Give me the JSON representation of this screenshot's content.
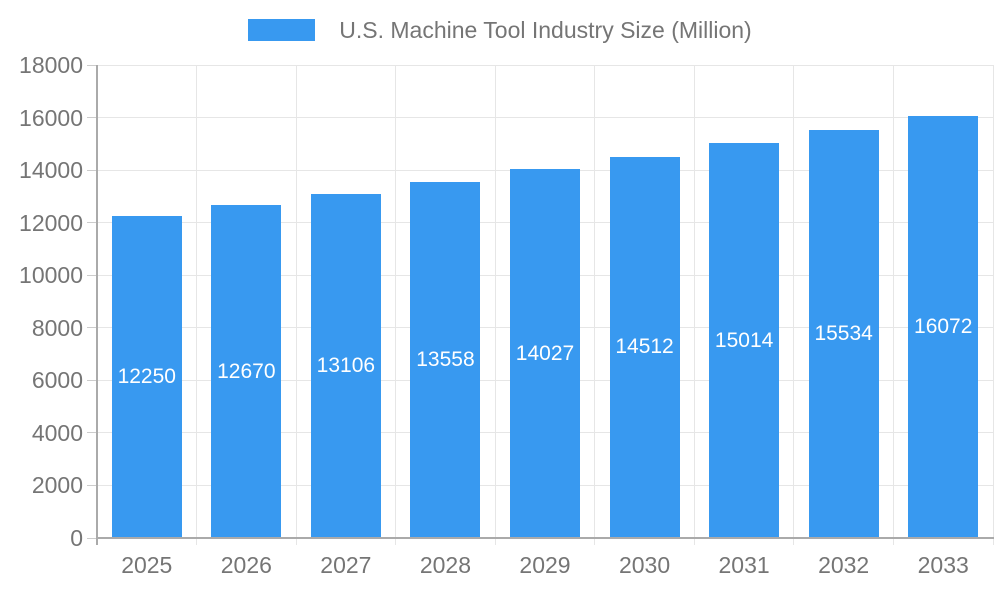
{
  "legend": {
    "series_label": "U.S. Machine Tool Industry Size (Million)"
  },
  "colors": {
    "bar": "#3899F0",
    "grid": "#E6E6E6",
    "axis": "#AAAAAA",
    "tick": "#CCCCCC",
    "text": "#757575",
    "value_label": "#FFFFFF"
  },
  "chart_data": {
    "type": "bar",
    "title": "U.S. Machine Tool Industry Size (Million)",
    "categories": [
      "2025",
      "2026",
      "2027",
      "2028",
      "2029",
      "2030",
      "2031",
      "2032",
      "2033"
    ],
    "series": [
      {
        "name": "U.S. Machine Tool Industry Size (Million)",
        "values": [
          12250,
          12670,
          13106,
          13558,
          14027,
          14512,
          15014,
          15534,
          16072
        ]
      }
    ],
    "values": [
      12250,
      12670,
      13106,
      13558,
      14027,
      14512,
      15014,
      15534,
      16072
    ],
    "xlabel": "",
    "ylabel": "",
    "ylim": [
      0,
      18000
    ],
    "ytick_step": 2000,
    "yticks": [
      0,
      2000,
      4000,
      6000,
      8000,
      10000,
      12000,
      14000,
      16000,
      18000
    ],
    "grid": true,
    "legend_position": "top-center",
    "value_labels": "inside-middle-white"
  }
}
